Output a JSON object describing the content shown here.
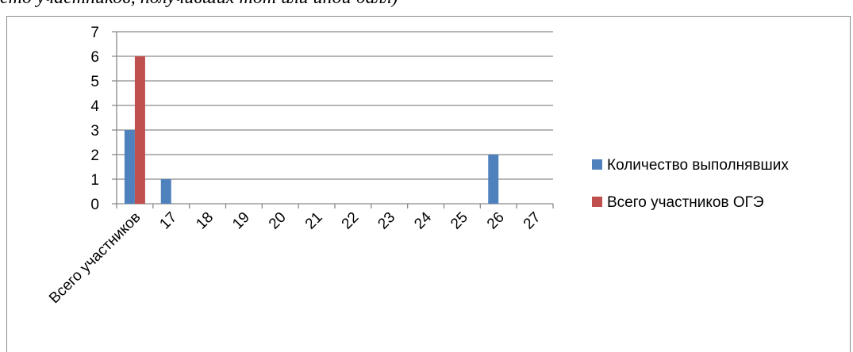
{
  "caption": "сто участников, получивших тот или иной балл)",
  "chart_data": {
    "type": "bar",
    "categories": [
      "Всего участников",
      "17",
      "18",
      "19",
      "20",
      "21",
      "22",
      "23",
      "24",
      "25",
      "26",
      "27"
    ],
    "series": [
      {
        "name": "Количество выполнявших",
        "color": "#4f81bd",
        "values": [
          3,
          1,
          0,
          0,
          0,
          0,
          0,
          0,
          0,
          0,
          2,
          0
        ]
      },
      {
        "name": "Всего участников ОГЭ",
        "color": "#c0504d",
        "values": [
          6,
          0,
          0,
          0,
          0,
          0,
          0,
          0,
          0,
          0,
          0,
          0
        ]
      }
    ],
    "ylim": [
      0,
      7
    ],
    "yticks": [
      0,
      1,
      2,
      3,
      4,
      5,
      6,
      7
    ],
    "grid": true,
    "legend_position": "right",
    "x_tick_rotation": -45
  }
}
